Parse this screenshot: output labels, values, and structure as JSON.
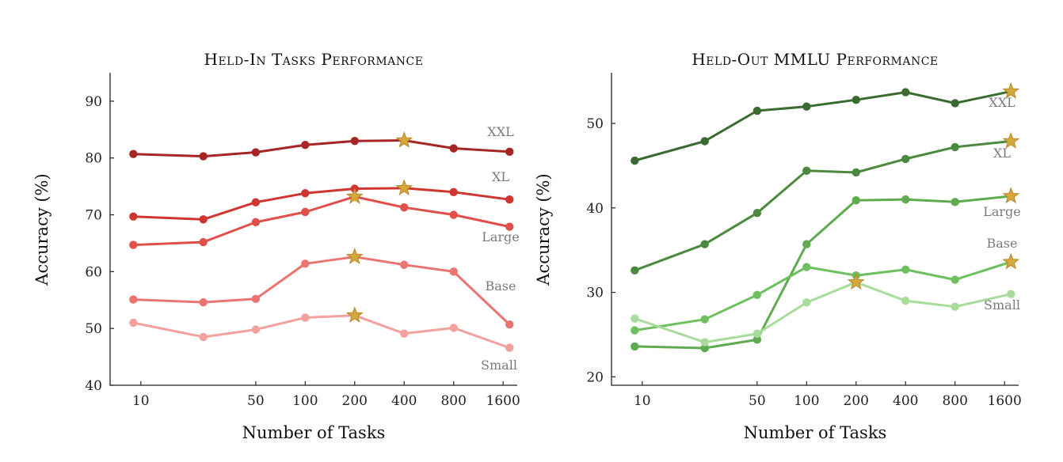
{
  "chart_data": [
    {
      "type": "line",
      "title": "Held-In Tasks Performance",
      "xlabel": "Number of Tasks",
      "ylabel": "Accuracy (%)",
      "x_scale": "log",
      "x_ticks": [
        10,
        50,
        100,
        200,
        400,
        800,
        1600
      ],
      "x_points": [
        9,
        24,
        50,
        100,
        200,
        400,
        800,
        1750
      ],
      "ylim": [
        40,
        95
      ],
      "y_ticks": [
        40,
        50,
        60,
        70,
        80,
        90
      ],
      "grid": false,
      "series": [
        {
          "name": "XXL",
          "color": "#a82525",
          "values": [
            80.7,
            80.3,
            81.0,
            82.3,
            83.0,
            83.1,
            81.7,
            81.1
          ],
          "best_index": 5
        },
        {
          "name": "XL",
          "color": "#d13530",
          "values": [
            69.7,
            69.2,
            72.2,
            73.8,
            74.6,
            74.7,
            74.0,
            72.7
          ],
          "best_index": 5
        },
        {
          "name": "Large",
          "color": "#e14f4a",
          "values": [
            64.7,
            65.2,
            68.7,
            70.5,
            73.2,
            71.3,
            70.0,
            67.9
          ],
          "best_index": 4
        },
        {
          "name": "Base",
          "color": "#ec7470",
          "values": [
            55.1,
            54.6,
            55.2,
            61.4,
            62.6,
            61.2,
            60.0,
            50.7
          ],
          "best_index": 4
        },
        {
          "name": "Small",
          "color": "#f2a19d",
          "values": [
            51.0,
            48.5,
            49.8,
            51.9,
            52.3,
            49.1,
            50.1,
            46.6
          ],
          "best_index": 4
        }
      ]
    },
    {
      "type": "line",
      "title": "Held-Out MMLU Performance",
      "xlabel": "Number of Tasks",
      "ylabel": "Accuracy (%)",
      "x_scale": "log",
      "x_ticks": [
        10,
        50,
        100,
        200,
        400,
        800,
        1600
      ],
      "x_points": [
        9,
        24,
        50,
        100,
        200,
        400,
        800,
        1750
      ],
      "ylim": [
        19,
        56
      ],
      "y_ticks": [
        20,
        30,
        40,
        50
      ],
      "grid": false,
      "series": [
        {
          "name": "XXL",
          "color": "#3a6b30",
          "values": [
            45.6,
            47.9,
            51.5,
            52.0,
            52.8,
            53.7,
            52.4,
            53.8
          ],
          "best_index": 7
        },
        {
          "name": "XL",
          "color": "#4b8a3e",
          "values": [
            32.6,
            35.7,
            39.4,
            44.4,
            44.2,
            45.8,
            47.2,
            47.9
          ],
          "best_index": 7
        },
        {
          "name": "Large",
          "color": "#5fab50",
          "values": [
            23.6,
            23.4,
            24.4,
            35.7,
            40.9,
            41.0,
            40.7,
            41.4
          ],
          "best_index": 7
        },
        {
          "name": "Base",
          "color": "#6ec05f",
          "values": [
            25.5,
            26.8,
            29.7,
            33.0,
            32.0,
            32.7,
            31.5,
            33.6
          ],
          "best_index": 7
        },
        {
          "name": "Small",
          "color": "#a8dc9a",
          "values": [
            26.9,
            24.1,
            25.1,
            28.8,
            31.2,
            29.0,
            28.3,
            29.8
          ],
          "best_index": 4
        }
      ]
    }
  ]
}
